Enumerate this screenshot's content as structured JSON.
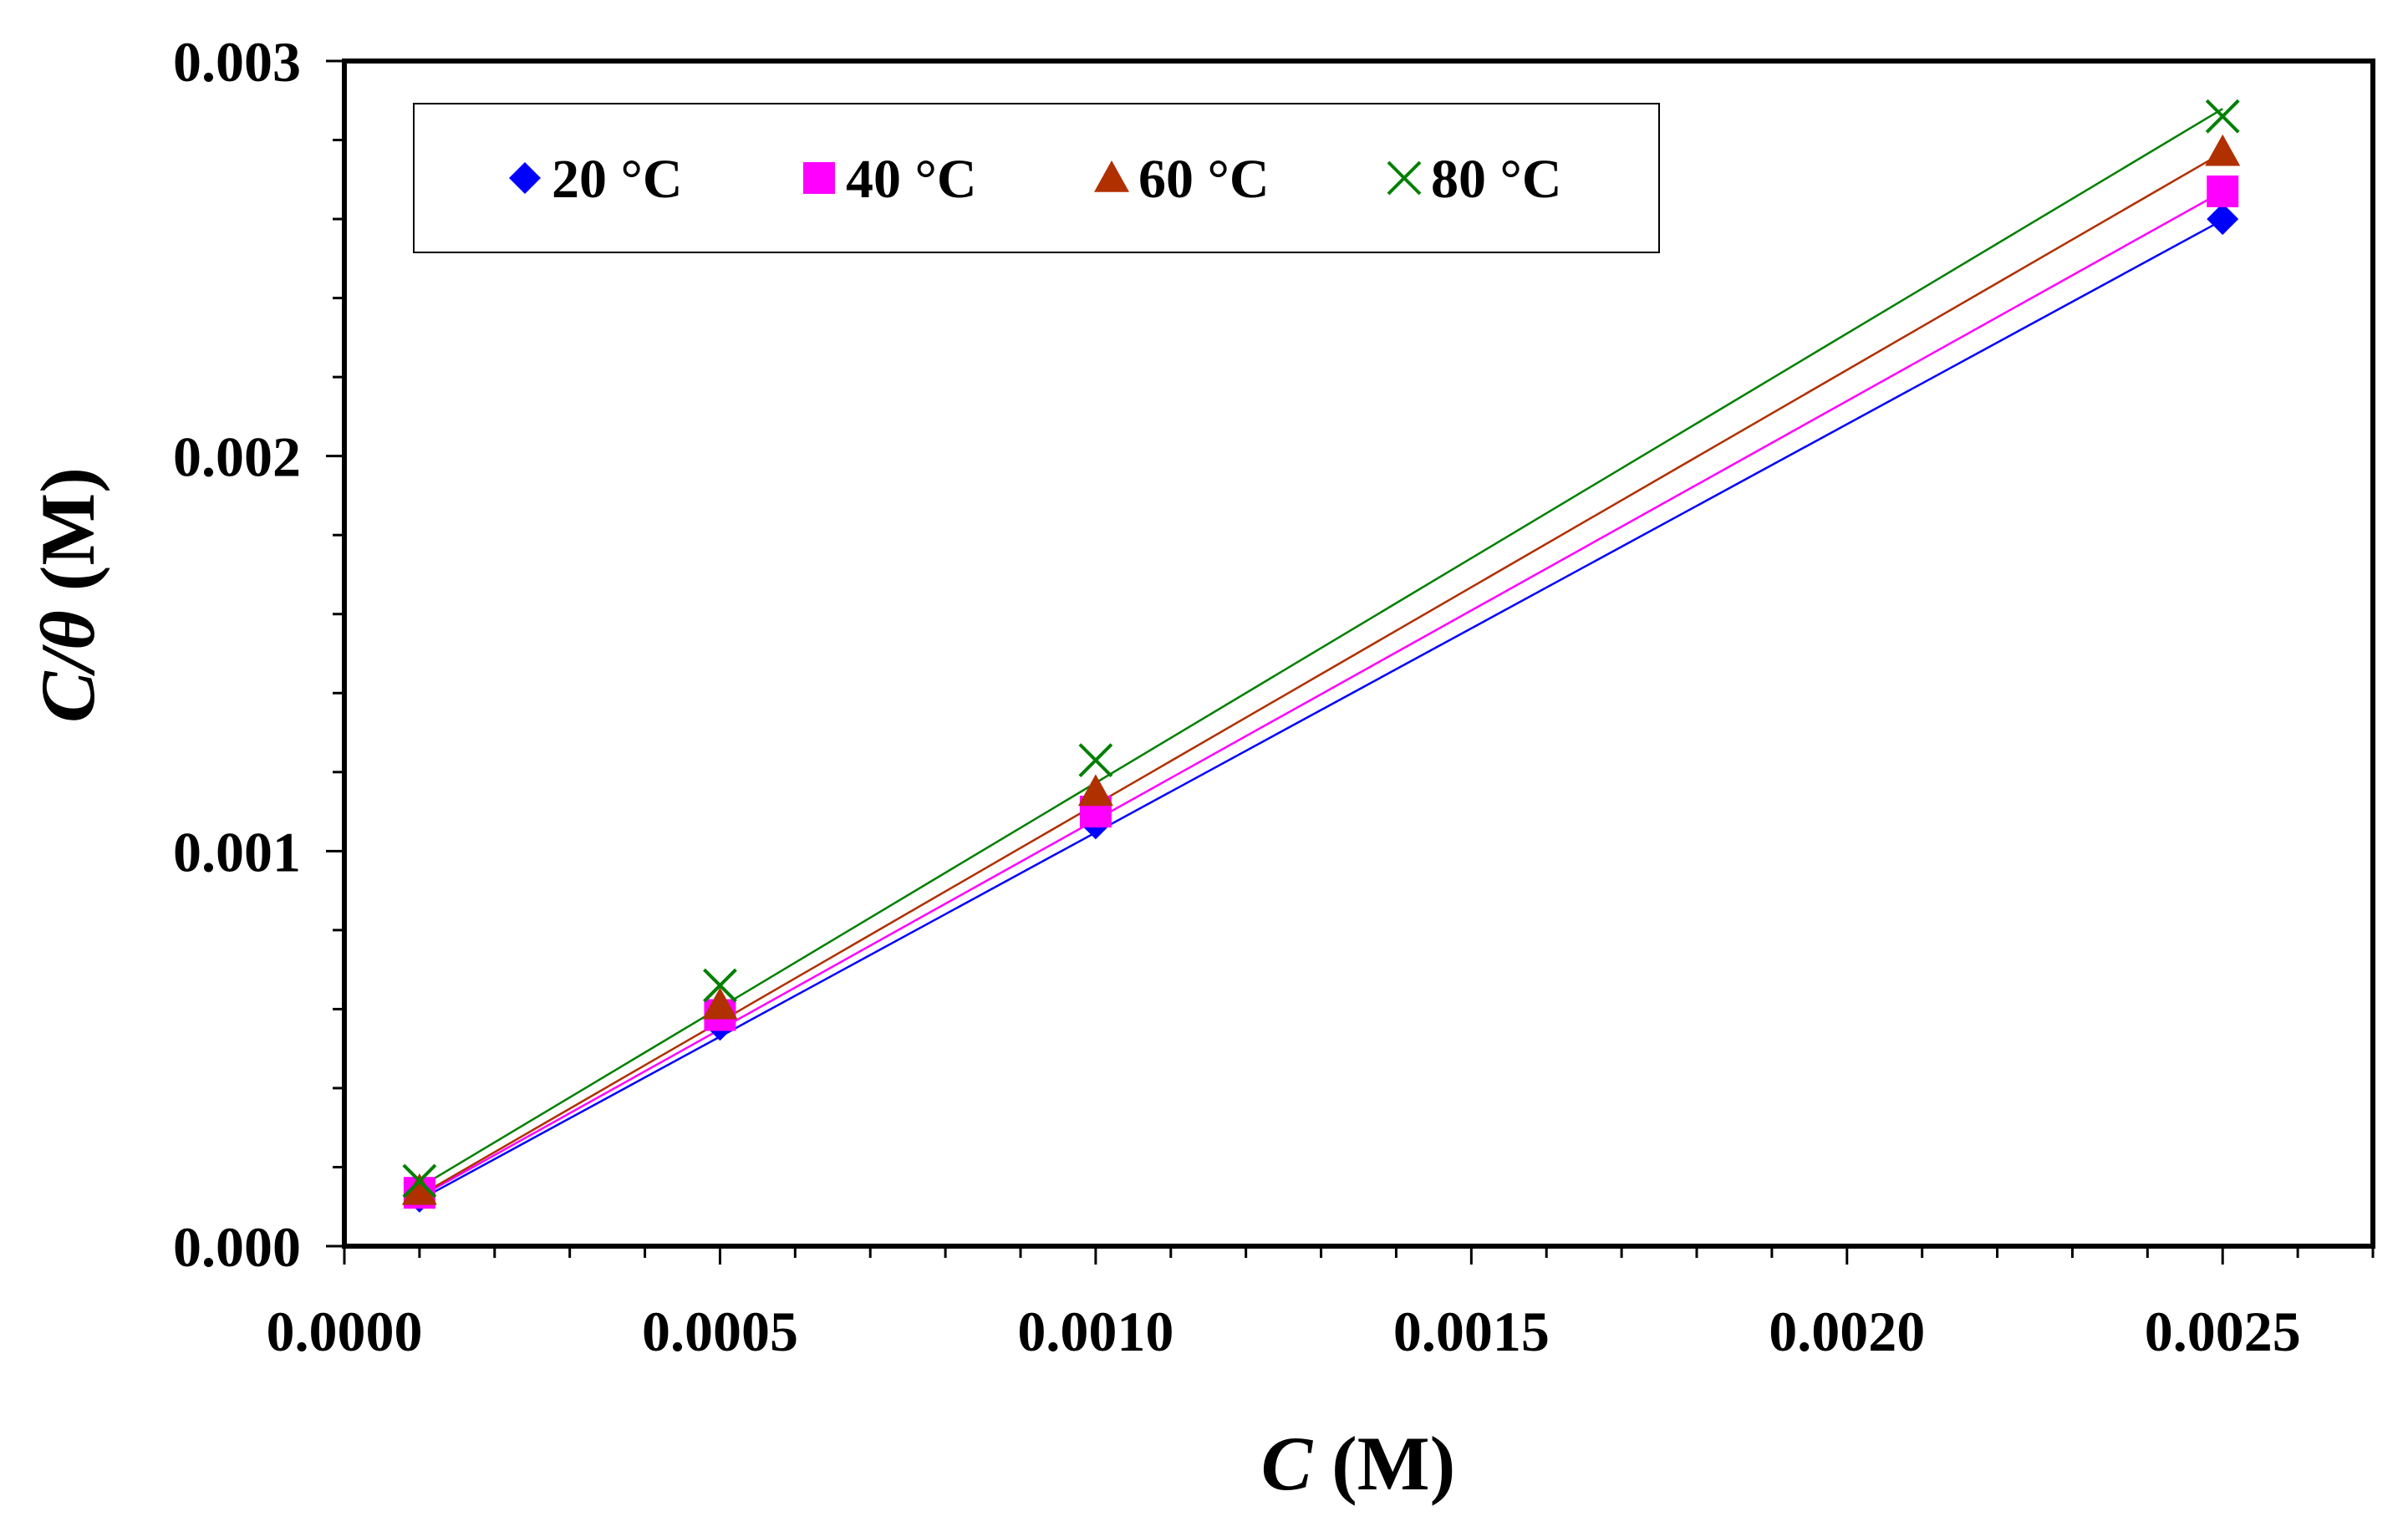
{
  "chart_data": {
    "type": "scatter",
    "title": "",
    "xlabel": {
      "var": "C",
      "unit": " (M)"
    },
    "ylabel": {
      "var": "C/θ",
      "unit": " (M)"
    },
    "xlim": [
      -0.0,
      0.0027
    ],
    "ylim": [
      0,
      0.003
    ],
    "x_ticks": [
      "0.0000",
      "0.0005",
      "0.0010",
      "0.0015",
      "0.0020",
      "0.0025"
    ],
    "y_ticks": [
      "0.000",
      "0.001",
      "0.002",
      "0.003"
    ],
    "legend_position": "top-left",
    "series": [
      {
        "name": "20 °C",
        "color": "#0000FF",
        "marker": "diamond",
        "x": [
          0.0001,
          0.0005,
          0.001,
          0.0025
        ],
        "y": [
          0.000125,
          0.00056,
          0.00107,
          0.0026
        ],
        "fit": [
          0.000117,
          1.0335
        ]
      },
      {
        "name": "40 °C",
        "color": "#FF00FF",
        "marker": "square",
        "x": [
          0.0001,
          0.0005,
          0.001,
          0.0025
        ],
        "y": [
          0.000135,
          0.000585,
          0.0011,
          0.00267
        ],
        "fit": [
          0.0001245,
          1.0605
        ]
      },
      {
        "name": "60 °C",
        "color": "#B03000",
        "marker": "triangle",
        "x": [
          0.0001,
          0.0005,
          0.001,
          0.0025
        ],
        "y": [
          0.00014,
          0.00061,
          0.00115,
          0.00277
        ],
        "fit": [
          0.000128,
          1.1
        ]
      },
      {
        "name": "80 °C",
        "color": "#008000",
        "marker": "x",
        "x": [
          0.0001,
          0.0005,
          0.001,
          0.0025
        ],
        "y": [
          0.000165,
          0.00066,
          0.00123,
          0.00286
        ],
        "fit": [
          0.000149,
          1.1375
        ]
      }
    ]
  }
}
